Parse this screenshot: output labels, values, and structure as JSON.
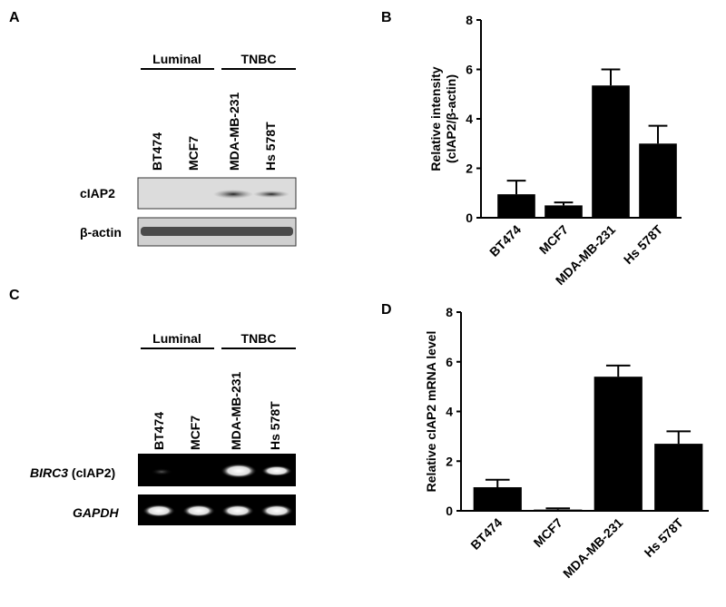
{
  "western_blot": {
    "panel": "A",
    "groups": [
      "Luminal",
      "TNBC"
    ],
    "lanes": [
      "BT474",
      "MCF7",
      "MDA-MB-231",
      "Hs 578T"
    ],
    "rows": [
      "cIAP2",
      "β-actin"
    ]
  },
  "rt_pcr": {
    "panel": "C",
    "groups": [
      "Luminal",
      "TNBC"
    ],
    "lanes": [
      "BT474",
      "MCF7",
      "MDA-MB-231",
      "Hs 578T"
    ],
    "rows": [
      {
        "italic": "BIRC3",
        "plain": " (cIAP2)"
      },
      {
        "italic": "GAPDH"
      }
    ]
  },
  "chart_data": [
    {
      "type": "bar",
      "panel": "B",
      "ylabel": [
        "Relative intensity",
        "(cIAP2/β-actin)"
      ],
      "categories": [
        "BT474",
        "MCF7",
        "MDA-MB-231",
        "Hs 578T"
      ],
      "values": [
        0.95,
        0.5,
        5.35,
        3.0
      ],
      "errors": [
        0.55,
        0.12,
        0.65,
        0.72
      ],
      "ylim": [
        0,
        8
      ],
      "yticks": [
        0,
        2,
        4,
        6,
        8
      ],
      "color": "#000000"
    },
    {
      "type": "bar",
      "panel": "D",
      "ylabel": [
        "Relative cIAP2 mRNA level"
      ],
      "categories": [
        "BT474",
        "MCF7",
        "MDA-MB-231",
        "Hs 578T"
      ],
      "values": [
        0.95,
        0.05,
        5.4,
        2.7
      ],
      "errors": [
        0.3,
        0.05,
        0.45,
        0.5
      ],
      "ylim": [
        0,
        8
      ],
      "yticks": [
        0,
        2,
        4,
        6,
        8
      ],
      "color": "#000000"
    }
  ]
}
